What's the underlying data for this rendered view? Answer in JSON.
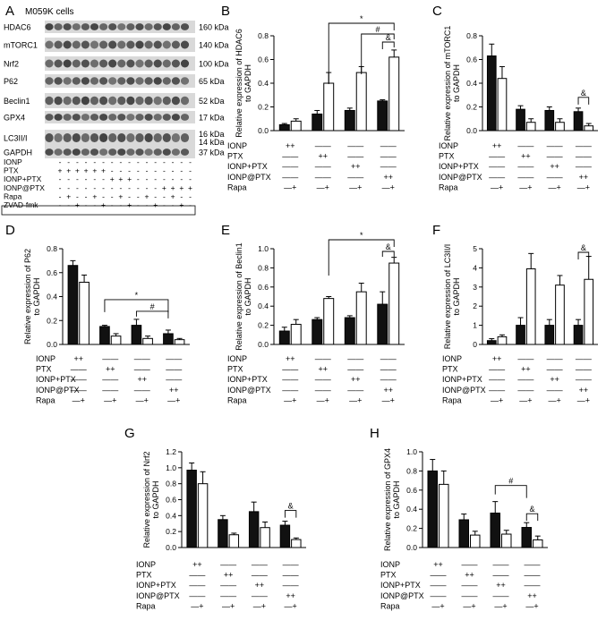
{
  "panel_a": {
    "letter": "A",
    "title": "M059K cells",
    "bands": [
      {
        "name": "HDAC6",
        "kda": "160 kDa"
      },
      {
        "name": "mTORC1",
        "kda": "140 kDa"
      },
      {
        "name": "Nrf2",
        "kda": "100 kDa"
      },
      {
        "name": "P62",
        "kda": "65 kDa"
      },
      {
        "name": "Beclin1",
        "kda": "52 kDa"
      },
      {
        "name": "GPX4",
        "kda": "17 kDa"
      },
      {
        "name": "LC3II/I",
        "kda": "16 kDa",
        "kda2": "14 kDa"
      },
      {
        "name": "GAPDH",
        "kda": "37 kDa"
      }
    ],
    "conditions": [
      {
        "label": "IONP",
        "signs": [
          "-",
          "-",
          "-",
          "-",
          "-",
          "-",
          "-",
          "-",
          "-",
          "-",
          "-",
          "-",
          "-",
          "-",
          "-",
          "-"
        ]
      },
      {
        "label": "PTX",
        "signs": [
          "+",
          "+",
          "+",
          "+",
          "+",
          "+",
          "-",
          "-",
          "-",
          "-",
          "-",
          "-",
          "-",
          "-",
          "-",
          "-"
        ]
      },
      {
        "label": "IONP+PTX",
        "signs": [
          "-",
          "-",
          "-",
          "-",
          "-",
          "-",
          "+",
          "+",
          "+",
          "-",
          "-",
          "-",
          "-",
          "-",
          "-",
          "-"
        ]
      },
      {
        "label": "IONP@PTX",
        "signs": [
          "-",
          "-",
          "-",
          "-",
          "-",
          "-",
          "-",
          "-",
          "-",
          "-",
          "-",
          "-",
          "+",
          "+",
          "+",
          "+"
        ]
      },
      {
        "label": "Rapa",
        "signs": [
          "-",
          "+",
          "-",
          "-",
          "+",
          "-",
          "-",
          "+",
          "-",
          "-",
          "+",
          "-",
          "-",
          "+",
          "-",
          "-"
        ]
      },
      {
        "label": "ZVAD-fmk",
        "signs": [
          "-",
          "-",
          "+",
          "-",
          "-",
          "+",
          "-",
          "-",
          "+",
          "-",
          "-",
          "+",
          "-",
          "-",
          "+",
          "-"
        ]
      }
    ]
  },
  "colors": {
    "black_bar": "#111111",
    "white_bar": "#ffffff",
    "axis": "#000000"
  },
  "chart_data": [
    {
      "panel": "B",
      "type": "bar",
      "ylabel": "Relative expression of HDAC6 to GAPDH",
      "categories": [
        "IONP",
        "PTX",
        "IONP+PTX",
        "IONP@PTX"
      ],
      "ylim": [
        0,
        0.8
      ],
      "ticks": [
        "0.0",
        "0.2",
        "0.4",
        "0.6",
        "0.8"
      ],
      "series": [
        {
          "values": [
            0.05,
            0.14,
            0.17,
            0.25
          ],
          "errors": [
            0.01,
            0.03,
            0.02,
            0.01
          ]
        },
        {
          "values": [
            0.08,
            0.4,
            0.49,
            0.62
          ],
          "errors": [
            0.02,
            0.09,
            0.05,
            0.06
          ]
        }
      ],
      "annotations": [
        "*",
        "#",
        "&"
      ]
    },
    {
      "panel": "C",
      "type": "bar",
      "ylabel": "Relative expression of mTORC1 to GAPDH",
      "categories": [
        "IONP",
        "PTX",
        "IONP+PTX",
        "IONP@PTX"
      ],
      "ylim": [
        0,
        0.8
      ],
      "ticks": [
        "0.0",
        "0.2",
        "0.4",
        "0.6",
        "0.8"
      ],
      "series": [
        {
          "values": [
            0.63,
            0.18,
            0.17,
            0.16
          ],
          "errors": [
            0.1,
            0.03,
            0.03,
            0.03
          ]
        },
        {
          "values": [
            0.44,
            0.07,
            0.07,
            0.04
          ],
          "errors": [
            0.1,
            0.03,
            0.03,
            0.02
          ]
        }
      ],
      "annotations": [
        "&"
      ]
    },
    {
      "panel": "D",
      "type": "bar",
      "ylabel": "Relative expression of P62 to GAPDH",
      "categories": [
        "IONP",
        "PTX",
        "IONP+PTX",
        "IONP@PTX"
      ],
      "ylim": [
        0,
        0.8
      ],
      "ticks": [
        "0.0",
        "0.2",
        "0.4",
        "0.6",
        "0.8"
      ],
      "series": [
        {
          "values": [
            0.66,
            0.15,
            0.16,
            0.09
          ],
          "errors": [
            0.04,
            0.01,
            0.05,
            0.03
          ]
        },
        {
          "values": [
            0.52,
            0.07,
            0.05,
            0.04
          ],
          "errors": [
            0.06,
            0.02,
            0.02,
            0.01
          ]
        }
      ],
      "annotations": [
        "*",
        "#"
      ]
    },
    {
      "panel": "E",
      "type": "bar",
      "ylabel": "Relative expression of Beclin1 to GAPDH",
      "categories": [
        "IONP",
        "PTX",
        "IONP+PTX",
        "IONP@PTX"
      ],
      "ylim": [
        0,
        1.0
      ],
      "ticks": [
        "0.0",
        "0.2",
        "0.4",
        "0.6",
        "0.8",
        "1.0"
      ],
      "series": [
        {
          "values": [
            0.14,
            0.26,
            0.28,
            0.42
          ],
          "errors": [
            0.04,
            0.02,
            0.02,
            0.13
          ]
        },
        {
          "values": [
            0.21,
            0.48,
            0.55,
            0.85
          ],
          "errors": [
            0.05,
            0.02,
            0.09,
            0.06
          ]
        }
      ],
      "annotations": [
        "*",
        "&"
      ]
    },
    {
      "panel": "F",
      "type": "bar",
      "ylabel": "Relative expression of LC3II/I to GAPDH",
      "categories": [
        "IONP",
        "PTX",
        "IONP+PTX",
        "IONP@PTX"
      ],
      "ylim": [
        0,
        5
      ],
      "ticks": [
        "0",
        "1",
        "2",
        "3",
        "4",
        "5"
      ],
      "series": [
        {
          "values": [
            0.2,
            1.0,
            1.0,
            1.0
          ],
          "errors": [
            0.1,
            0.4,
            0.3,
            0.3
          ]
        },
        {
          "values": [
            0.4,
            3.95,
            3.1,
            3.4
          ],
          "errors": [
            0.1,
            0.8,
            0.5,
            1.2
          ]
        }
      ],
      "annotations": [
        "&"
      ]
    },
    {
      "panel": "G",
      "type": "bar",
      "ylabel": "Relative expression of Nrf2 to GAPDH",
      "categories": [
        "IONP",
        "PTX",
        "IONP+PTX",
        "IONP@PTX"
      ],
      "ylim": [
        0,
        1.2
      ],
      "ticks": [
        "0.0",
        "0.2",
        "0.4",
        "0.6",
        "0.8",
        "1.0",
        "1.2"
      ],
      "series": [
        {
          "values": [
            0.97,
            0.35,
            0.45,
            0.28
          ],
          "errors": [
            0.09,
            0.05,
            0.12,
            0.05
          ]
        },
        {
          "values": [
            0.8,
            0.16,
            0.25,
            0.1
          ],
          "errors": [
            0.15,
            0.02,
            0.07,
            0.02
          ]
        }
      ],
      "annotations": [
        "&"
      ]
    },
    {
      "panel": "H",
      "type": "bar",
      "ylabel": "Relative expression of GPX4 to GAPDH",
      "categories": [
        "IONP",
        "PTX",
        "IONP+PTX",
        "IONP@PTX"
      ],
      "ylim": [
        0,
        1.0
      ],
      "ticks": [
        "0.0",
        "0.2",
        "0.4",
        "0.6",
        "0.8",
        "1.0"
      ],
      "series": [
        {
          "values": [
            0.8,
            0.29,
            0.36,
            0.21
          ],
          "errors": [
            0.12,
            0.06,
            0.12,
            0.05
          ]
        },
        {
          "values": [
            0.66,
            0.13,
            0.14,
            0.08
          ],
          "errors": [
            0.14,
            0.04,
            0.04,
            0.04
          ]
        }
      ],
      "annotations": [
        "#",
        "&"
      ]
    }
  ],
  "group_table": {
    "row_labels": [
      "IONP",
      "PTX",
      "IONP+PTX",
      "IONP@PTX",
      "Rapa"
    ],
    "cells": [
      [
        "++",
        "——",
        "——",
        "——"
      ],
      [
        "——",
        "++",
        "——",
        "——"
      ],
      [
        "——",
        "——",
        "++",
        "——"
      ],
      [
        "——",
        "——",
        "——",
        "++"
      ],
      [
        "—+",
        "—+",
        "—+",
        "—+"
      ]
    ]
  }
}
